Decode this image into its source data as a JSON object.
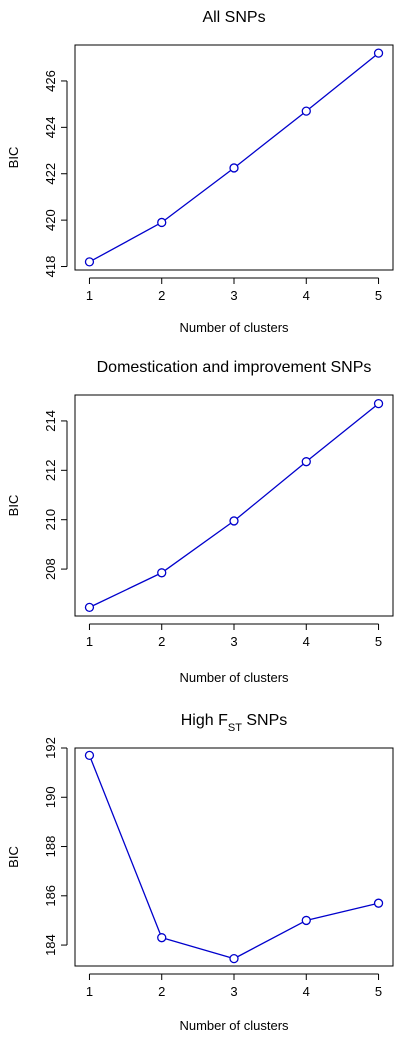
{
  "chart_data": [
    {
      "type": "line",
      "title": "All SNPs",
      "xlabel": "Number of clusters",
      "ylabel": "BIC",
      "x": [
        1,
        2,
        3,
        4,
        5
      ],
      "values": [
        418.2,
        419.9,
        422.25,
        424.7,
        427.2
      ],
      "xticks": [
        "1",
        "2",
        "3",
        "4",
        "5"
      ],
      "yticks": [
        418,
        420,
        422,
        424,
        426
      ],
      "ylim": [
        417.85,
        427.55
      ],
      "color": "#0000cc",
      "grid": false,
      "legend": "none"
    },
    {
      "type": "line",
      "title": "Domestication and improvement SNPs",
      "xlabel": "Number of clusters",
      "ylabel": "BIC",
      "x": [
        1,
        2,
        3,
        4,
        5
      ],
      "values": [
        206.45,
        207.85,
        209.95,
        212.35,
        214.7
      ],
      "xticks": [
        "1",
        "2",
        "3",
        "4",
        "5"
      ],
      "yticks": [
        208,
        210,
        212,
        214
      ],
      "ylim": [
        206.1,
        215.05
      ],
      "color": "#0000cc",
      "grid": false,
      "legend": "none"
    },
    {
      "type": "line",
      "title": "High F",
      "title_subscript": "ST",
      "title_suffix": " SNPs",
      "xlabel": "Number of clusters",
      "ylabel": "BIC",
      "x": [
        1,
        2,
        3,
        4,
        5
      ],
      "values": [
        191.7,
        184.3,
        183.45,
        185.0,
        185.7
      ],
      "xticks": [
        "1",
        "2",
        "3",
        "4",
        "5"
      ],
      "yticks": [
        184,
        186,
        188,
        190,
        192
      ],
      "ylim": [
        183.15,
        192.0
      ],
      "color": "#0000cc",
      "grid": false,
      "legend": "none"
    }
  ]
}
